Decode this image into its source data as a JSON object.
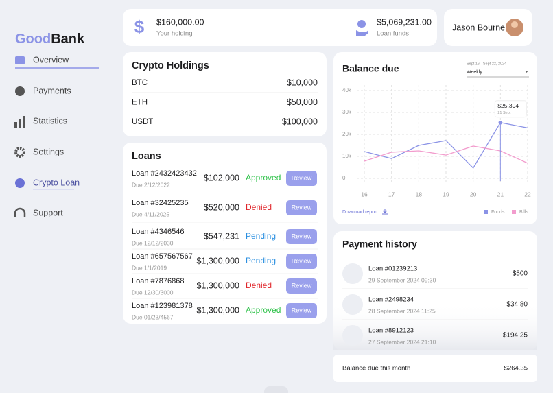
{
  "sidebar": {
    "logo": {
      "first": "Good",
      "second": "Bank"
    },
    "nav": [
      "Overview",
      "Payments",
      "Statistics",
      "Settings",
      "Crypto Loan",
      "Support"
    ]
  },
  "header": {
    "holding": {
      "amount": "$160,000.00",
      "label": "Your holding"
    },
    "loan_funds": {
      "amount": "$5,069,231.00",
      "label": "Loan funds"
    },
    "user": {
      "name": "Jason Bourne"
    }
  },
  "crypto_holdings": {
    "title": "Crypto Holdings",
    "rows": [
      [
        "BTC",
        "$10,000"
      ],
      [
        "ETH",
        "$50,000"
      ],
      [
        "USDT",
        "$100,000"
      ]
    ]
  },
  "loans": {
    "title": "Loans",
    "action": "Review",
    "rows": [
      {
        "id": "Loan #2432423432",
        "due": "Due 2/12/2022",
        "amount": "$102,000",
        "status": "Approved",
        "status_color": "#2fc24a"
      },
      {
        "id": "Loan #32425235",
        "due": "Due 4/11/2025",
        "amount": "$520,000",
        "status": "Denied",
        "status_color": "#e0262b"
      },
      {
        "id": "Loan #4346546",
        "due": "Due 12/12/2030",
        "amount": "$547,231",
        "status": "Pending",
        "status_color": "#2a8fe0"
      },
      {
        "id": "Loan #657567567",
        "due": "Due 1/1/2019",
        "amount": "$1,300,000",
        "status": "Pending",
        "status_color": "#2a8fe0"
      },
      {
        "id": "Loan #7876868",
        "due": "Due 12/30/3000",
        "amount": "$1,300,000",
        "status": "Denied",
        "status_color": "#e0262b"
      },
      {
        "id": "Loan #123981378",
        "due": "Due 01/23/4567",
        "amount": "$1,300,000",
        "status": "Approved",
        "status_color": "#2fc24a"
      }
    ]
  },
  "chart_data": {
    "type": "line",
    "title": "Balance due",
    "subtitle": "Sept 16 - Sept 22, 2024",
    "period": "Weekly",
    "x": [
      16,
      17,
      18,
      19,
      20,
      21,
      22
    ],
    "xlim": [
      16,
      22
    ],
    "xticks": [
      16,
      17,
      18,
      19,
      20,
      21,
      22
    ],
    "ylim": [
      0,
      40000
    ],
    "yticks": [
      0,
      {
        "value": 10000,
        "label": "10k"
      },
      {
        "value": 20000,
        "label": "20k"
      },
      {
        "value": 30000,
        "label": "30k"
      },
      {
        "value": 40000,
        "label": "40k"
      }
    ],
    "grid": true,
    "series": [
      {
        "name": "Foods",
        "color": "#8b93e6",
        "values": [
          12200,
          9000,
          15000,
          17200,
          4700,
          25394,
          23000
        ]
      },
      {
        "name": "Bills",
        "color": "#f29ccd",
        "values": [
          7800,
          11900,
          12500,
          10600,
          14700,
          12500,
          6900
        ]
      }
    ],
    "annotation": {
      "x": 21,
      "label": "$25,394",
      "sublabel": "21 Sept"
    },
    "download": "Download report"
  },
  "payment_history": {
    "title": "Payment history",
    "rows": [
      {
        "id": "Loan #01239213",
        "date": "29 September 2024 09:30",
        "amount": "$500"
      },
      {
        "id": "Loan #2498234",
        "date": "28 September 2024 11:25",
        "amount": "$34.80"
      },
      {
        "id": "Loan #8912123",
        "date": "27 September 2024 21:10",
        "amount": "$194.25"
      }
    ],
    "footer": {
      "label": "Balance due this month",
      "amount": "$264.35"
    }
  }
}
